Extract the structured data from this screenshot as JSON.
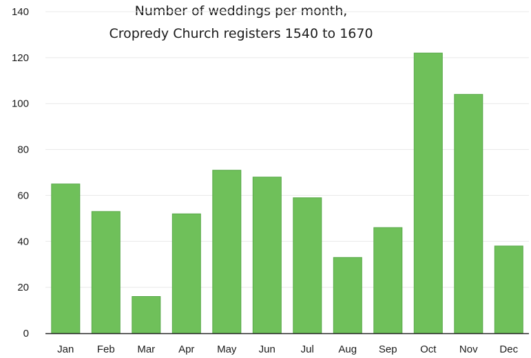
{
  "chart_data": {
    "type": "bar",
    "title_lines": [
      "Number of weddings per month,",
      "Cropredy Church registers 1540 to 1670"
    ],
    "xlabel": "",
    "ylabel": "",
    "categories": [
      "Jan",
      "Feb",
      "Mar",
      "Apr",
      "May",
      "Jun",
      "Jul",
      "Aug",
      "Sep",
      "Oct",
      "Nov",
      "Dec"
    ],
    "values": [
      65,
      53,
      16,
      52,
      71,
      68,
      59,
      33,
      46,
      122,
      104,
      38
    ],
    "ylim": [
      0,
      140
    ],
    "yticks": [
      "0",
      "20",
      "40",
      "60",
      "80",
      "100",
      "120",
      "140"
    ],
    "grid": true,
    "legend": "none",
    "colors": {
      "bar": "#6fc05a",
      "bar_edge": "#58a848",
      "grid": "#e8e8e8",
      "axis": "#222222",
      "text": "#1a1a1a"
    }
  }
}
